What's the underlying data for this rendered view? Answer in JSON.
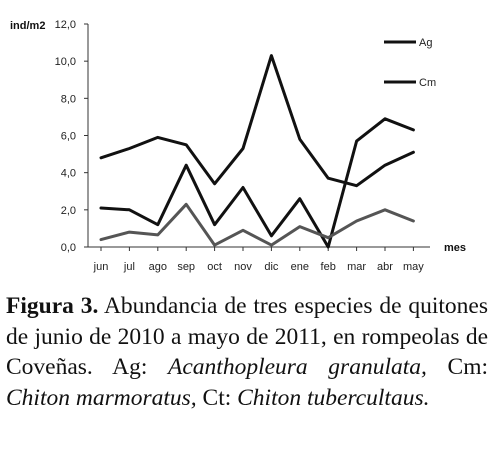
{
  "chart_data": {
    "type": "line",
    "ylabel": "ind/m2",
    "xlabel": "mes",
    "ylim": [
      0,
      12
    ],
    "yticks": [
      "0,0",
      "2,0",
      "4,0",
      "6,0",
      "8,0",
      "10,0",
      "12,0"
    ],
    "categories": [
      "jun",
      "jul",
      "ago",
      "sep",
      "oct",
      "nov",
      "dic",
      "ene",
      "feb",
      "mar",
      "abr",
      "may"
    ],
    "grid": false,
    "legend_position": "top-right",
    "series": [
      {
        "name": "Ag",
        "color": "#111111",
        "values": [
          2.1,
          2.0,
          1.2,
          4.4,
          1.2,
          3.2,
          0.6,
          2.6,
          0.0,
          5.7,
          6.9,
          6.3
        ]
      },
      {
        "name": "Cm",
        "color": "#111111",
        "values": [
          4.8,
          5.3,
          5.9,
          5.5,
          3.4,
          5.3,
          10.3,
          5.8,
          3.7,
          3.3,
          4.4,
          5.1
        ]
      },
      {
        "name": "",
        "color": "#555555",
        "values": [
          0.4,
          0.8,
          0.65,
          2.3,
          0.1,
          0.9,
          0.1,
          1.1,
          0.5,
          1.4,
          2.0,
          1.4
        ]
      }
    ]
  },
  "caption": {
    "label": "Figura 3.",
    "text1": " Abundancia de tres especies de quitones de junio de 2010 a mayo de 2011, en rompeolas de Coveñas. Ag: ",
    "species1": "Acanthopleura granulata,",
    "text2": " Cm: ",
    "species2": "Chiton marmoratus,",
    "text3": " Ct: ",
    "species3": "Chiton tubercultaus."
  }
}
